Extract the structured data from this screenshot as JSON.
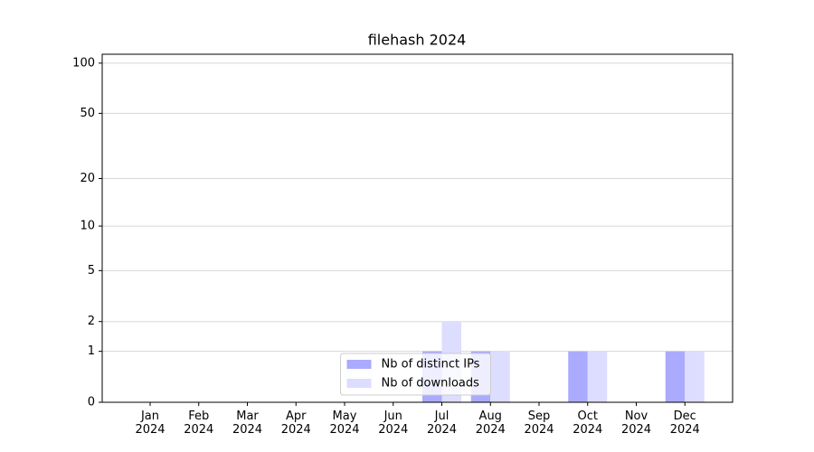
{
  "chart_data": {
    "type": "bar",
    "title": "filehash 2024",
    "categories": [
      "Jan\n2024",
      "Feb\n2024",
      "Mar\n2024",
      "Apr\n2024",
      "May\n2024",
      "Jun\n2024",
      "Jul\n2024",
      "Aug\n2024",
      "Sep\n2024",
      "Oct\n2024",
      "Nov\n2024",
      "Dec\n2024"
    ],
    "series": [
      {
        "name": "Nb of distinct IPs",
        "color": "#aaaaff",
        "values": [
          0,
          0,
          0,
          0,
          0,
          0,
          1,
          1,
          0,
          1,
          0,
          1
        ]
      },
      {
        "name": "Nb of downloads",
        "color": "#ddddff",
        "values": [
          0,
          0,
          0,
          0,
          0,
          0,
          2,
          1,
          0,
          1,
          0,
          1
        ]
      }
    ],
    "yscale": "log1p",
    "ylim": [
      0,
      113
    ],
    "yticks": [
      0,
      1,
      2,
      5,
      10,
      20,
      50,
      100
    ],
    "grid": true,
    "legend": "lower center"
  }
}
